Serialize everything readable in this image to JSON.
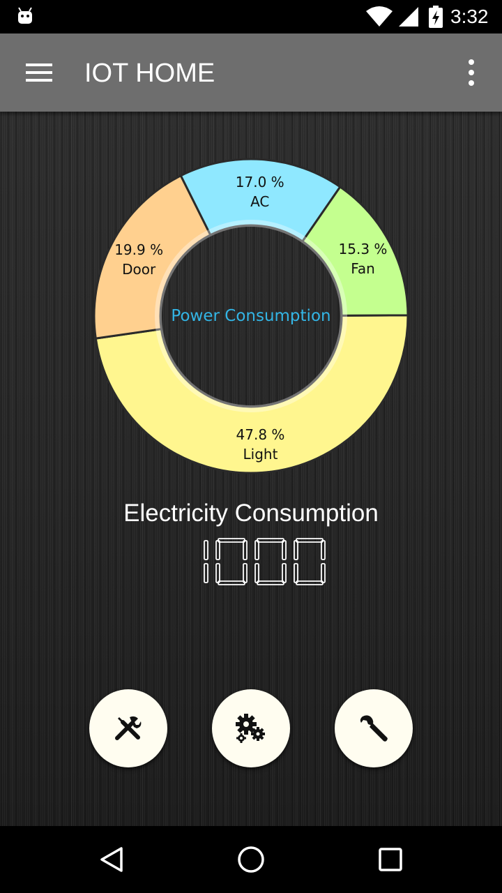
{
  "status_bar": {
    "time": "3:32",
    "icons": [
      "android-icon",
      "wifi-icon",
      "signal-icon",
      "battery-charging-icon"
    ]
  },
  "app_bar": {
    "title": "IOT HOME",
    "left_icon": "menu-icon",
    "right_icon": "more-vert-icon"
  },
  "chart_data": {
    "type": "pie",
    "title": "Power Consumption",
    "slices": [
      {
        "label": "Light",
        "percent_label": "47.8 %",
        "value": 47.8,
        "color": "#fff68f"
      },
      {
        "label": "Door",
        "percent_label": "19.9 %",
        "value": 19.9,
        "color": "#ffd08f"
      },
      {
        "label": "AC",
        "percent_label": "17.0 %",
        "value": 17.0,
        "color": "#8fe8ff"
      },
      {
        "label": "Fan",
        "percent_label": "15.3 %",
        "value": 15.3,
        "color": "#c4ff8f"
      }
    ]
  },
  "metric": {
    "label": "Electricity Consumption",
    "value": "1000"
  },
  "actions": [
    {
      "name": "tools",
      "icon": "tools-icon"
    },
    {
      "name": "settings",
      "icon": "gears-icon"
    },
    {
      "name": "wrench",
      "icon": "wrench-icon"
    }
  ],
  "nav_bar": {
    "icons": [
      "back-icon",
      "home-icon",
      "recents-icon"
    ]
  },
  "colors": {
    "app_bar": "#6e6e6e",
    "chart_center_text": "#33b5e5",
    "button_bg": "#fffdf0"
  }
}
